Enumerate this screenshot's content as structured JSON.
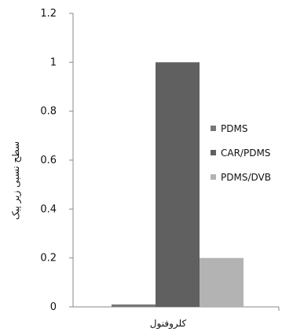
{
  "chart_data": {
    "type": "bar",
    "categories": [
      "کلروفنول"
    ],
    "series": [
      {
        "name": "PDMS",
        "values": [
          0.01
        ],
        "color": "#777777"
      },
      {
        "name": "CAR/PDMS",
        "values": [
          1.0
        ],
        "color": "#606060"
      },
      {
        "name": "PDMS/DVB",
        "values": [
          0.2
        ],
        "color": "#b3b3b3"
      }
    ],
    "ylim": [
      0,
      1.2
    ],
    "yticks": [
      "0",
      "0.2",
      "0.4",
      "0.6",
      "0.8",
      "1",
      "1.2"
    ],
    "ylabel": "سطح نسبی زیر پیک",
    "xlabel": "",
    "legend": "right",
    "grid": false
  }
}
